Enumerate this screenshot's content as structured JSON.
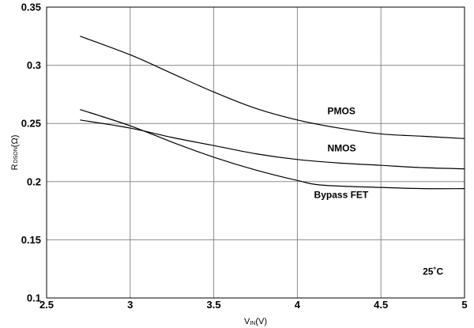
{
  "chart_data": {
    "type": "line",
    "xlabel": {
      "main": "V",
      "sub": "IN",
      "tail": "(V)"
    },
    "ylabel": {
      "main": "R",
      "sub": "DSON",
      "tail": "(Ω)"
    },
    "xlim": [
      2.5,
      5
    ],
    "ylim": [
      0.1,
      0.35
    ],
    "x_ticks": [
      "2.5",
      "3",
      "3.5",
      "4",
      "4.5",
      "5"
    ],
    "y_ticks": [
      "0.1",
      "0.15",
      "0.2",
      "0.25",
      "0.3",
      "0.35"
    ],
    "grid": true,
    "series": [
      {
        "name": "PMOS",
        "x": [
          2.7,
          3.0,
          3.25,
          3.5,
          3.75,
          4.0,
          4.25,
          4.5,
          4.75,
          5.0
        ],
        "y": [
          0.325,
          0.309,
          0.293,
          0.277,
          0.263,
          0.253,
          0.246,
          0.241,
          0.239,
          0.237
        ]
      },
      {
        "name": "NMOS",
        "x": [
          2.7,
          3.0,
          3.25,
          3.5,
          3.75,
          4.0,
          4.25,
          4.5,
          4.75,
          5.0
        ],
        "y": [
          0.253,
          0.246,
          0.238,
          0.231,
          0.224,
          0.219,
          0.216,
          0.214,
          0.212,
          0.211
        ]
      },
      {
        "name": "Bypass FET",
        "x": [
          2.7,
          3.0,
          3.25,
          3.5,
          3.75,
          4.0,
          4.15,
          4.5,
          4.75,
          5.0
        ],
        "y": [
          0.262,
          0.248,
          0.234,
          0.221,
          0.21,
          0.201,
          0.197,
          0.195,
          0.194,
          0.194
        ]
      }
    ],
    "annotations": [
      {
        "text": "PMOS",
        "x": 4.18,
        "y": 0.258
      },
      {
        "text": "NMOS",
        "x": 4.18,
        "y": 0.226
      },
      {
        "text": "Bypass FET",
        "x": 4.1,
        "y": 0.186
      },
      {
        "text": "25˚C",
        "x": 4.75,
        "y": 0.12
      }
    ]
  }
}
